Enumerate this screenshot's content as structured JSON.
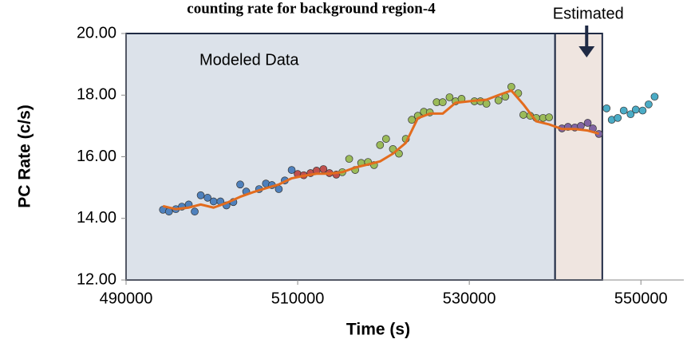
{
  "chart_data": {
    "type": "scatter",
    "title": "counting rate for background region-4",
    "xlabel": "Time (s)",
    "ylabel": "PC Rate (c/s)",
    "xlim": [
      490000,
      555000
    ],
    "ylim": [
      12,
      20
    ],
    "xticks": [
      490000,
      510000,
      530000,
      550000
    ],
    "yticks": [
      {
        "value": 12,
        "label": "12.00"
      },
      {
        "value": 14,
        "label": "14.00"
      },
      {
        "value": 16,
        "label": "16.00"
      },
      {
        "value": 18,
        "label": "18.00"
      },
      {
        "value": 20,
        "label": "20.00"
      }
    ],
    "regions": [
      {
        "label": "Modeled Data",
        "x": [
          490000,
          540000
        ],
        "color": "#dce2ea"
      },
      {
        "label": "Estimated",
        "x": [
          540000,
          545500
        ],
        "color": "#efe5e0"
      }
    ],
    "series": [
      {
        "color": "#4f81bd",
        "mode": "markers",
        "x": [
          494300,
          495000,
          495800,
          496500,
          497300,
          498000,
          498700,
          499500,
          500200,
          501000,
          501700,
          502500,
          503300,
          504000,
          505500,
          506300,
          507000,
          507800,
          508500,
          509300
        ],
        "values": [
          14.28,
          14.22,
          14.3,
          14.38,
          14.45,
          14.22,
          14.75,
          14.67,
          14.55,
          14.55,
          14.42,
          14.53,
          15.1,
          14.87,
          14.95,
          15.13,
          15.08,
          14.95,
          15.23,
          15.57
        ]
      },
      {
        "color": "#c0504d",
        "mode": "markers",
        "x": [
          510000,
          510700,
          511500,
          512200,
          513000,
          513700,
          514500
        ],
        "values": [
          15.44,
          15.4,
          15.47,
          15.55,
          15.6,
          15.47,
          15.42
        ]
      },
      {
        "color": "#9bbb59",
        "mode": "markers",
        "x": [
          515200,
          516000,
          516700,
          517400,
          518200,
          518900,
          519600,
          520300,
          521100,
          521800,
          522600,
          523300,
          524000,
          524700,
          525400,
          526200,
          526900,
          527700,
          528400,
          529100,
          530600,
          531300,
          532000,
          533400,
          534200,
          534900,
          535700,
          536300,
          537100,
          537800,
          538600,
          539300
        ],
        "values": [
          15.5,
          15.93,
          15.57,
          15.8,
          15.83,
          15.73,
          16.38,
          16.58,
          16.25,
          16.1,
          16.58,
          17.2,
          17.33,
          17.46,
          17.44,
          17.77,
          17.77,
          17.93,
          17.8,
          17.88,
          17.8,
          17.8,
          17.72,
          17.83,
          17.95,
          18.27,
          18.06,
          17.36,
          17.33,
          17.26,
          17.26,
          17.28
        ]
      },
      {
        "color": "#8064a2",
        "mode": "markers",
        "x": [
          540800,
          541500,
          542300,
          543000,
          543800,
          544400,
          545100
        ],
        "values": [
          16.92,
          16.97,
          16.95,
          17.0,
          17.1,
          16.92,
          16.74
        ]
      },
      {
        "color": "#4bacc6",
        "mode": "markers",
        "x": [
          546000,
          546600,
          547300,
          548000,
          548800,
          549400,
          550200,
          550900,
          551600
        ],
        "values": [
          17.57,
          17.2,
          17.26,
          17.5,
          17.38,
          17.53,
          17.5,
          17.7,
          17.95
        ]
      },
      {
        "color": "#e36c1e",
        "mode": "line",
        "x": [
          494300,
          495800,
          497300,
          498700,
          500200,
          501700,
          503300,
          504800,
          506300,
          507800,
          509300,
          510700,
          512200,
          513700,
          515200,
          516700,
          518200,
          519600,
          521100,
          522600,
          524000,
          525400,
          526900,
          528400,
          530600,
          532000,
          533400,
          534900,
          536300,
          537800,
          539300,
          540800,
          542300,
          543800,
          545100
        ],
        "values": [
          14.4,
          14.3,
          14.35,
          14.45,
          14.35,
          14.5,
          14.7,
          14.85,
          14.98,
          15.1,
          15.3,
          15.38,
          15.45,
          15.45,
          15.5,
          15.65,
          15.75,
          15.85,
          16.1,
          16.45,
          17.25,
          17.4,
          17.4,
          17.75,
          17.82,
          17.85,
          18.0,
          18.15,
          17.7,
          17.15,
          17.05,
          16.9,
          16.9,
          16.85,
          16.75
        ]
      }
    ]
  }
}
